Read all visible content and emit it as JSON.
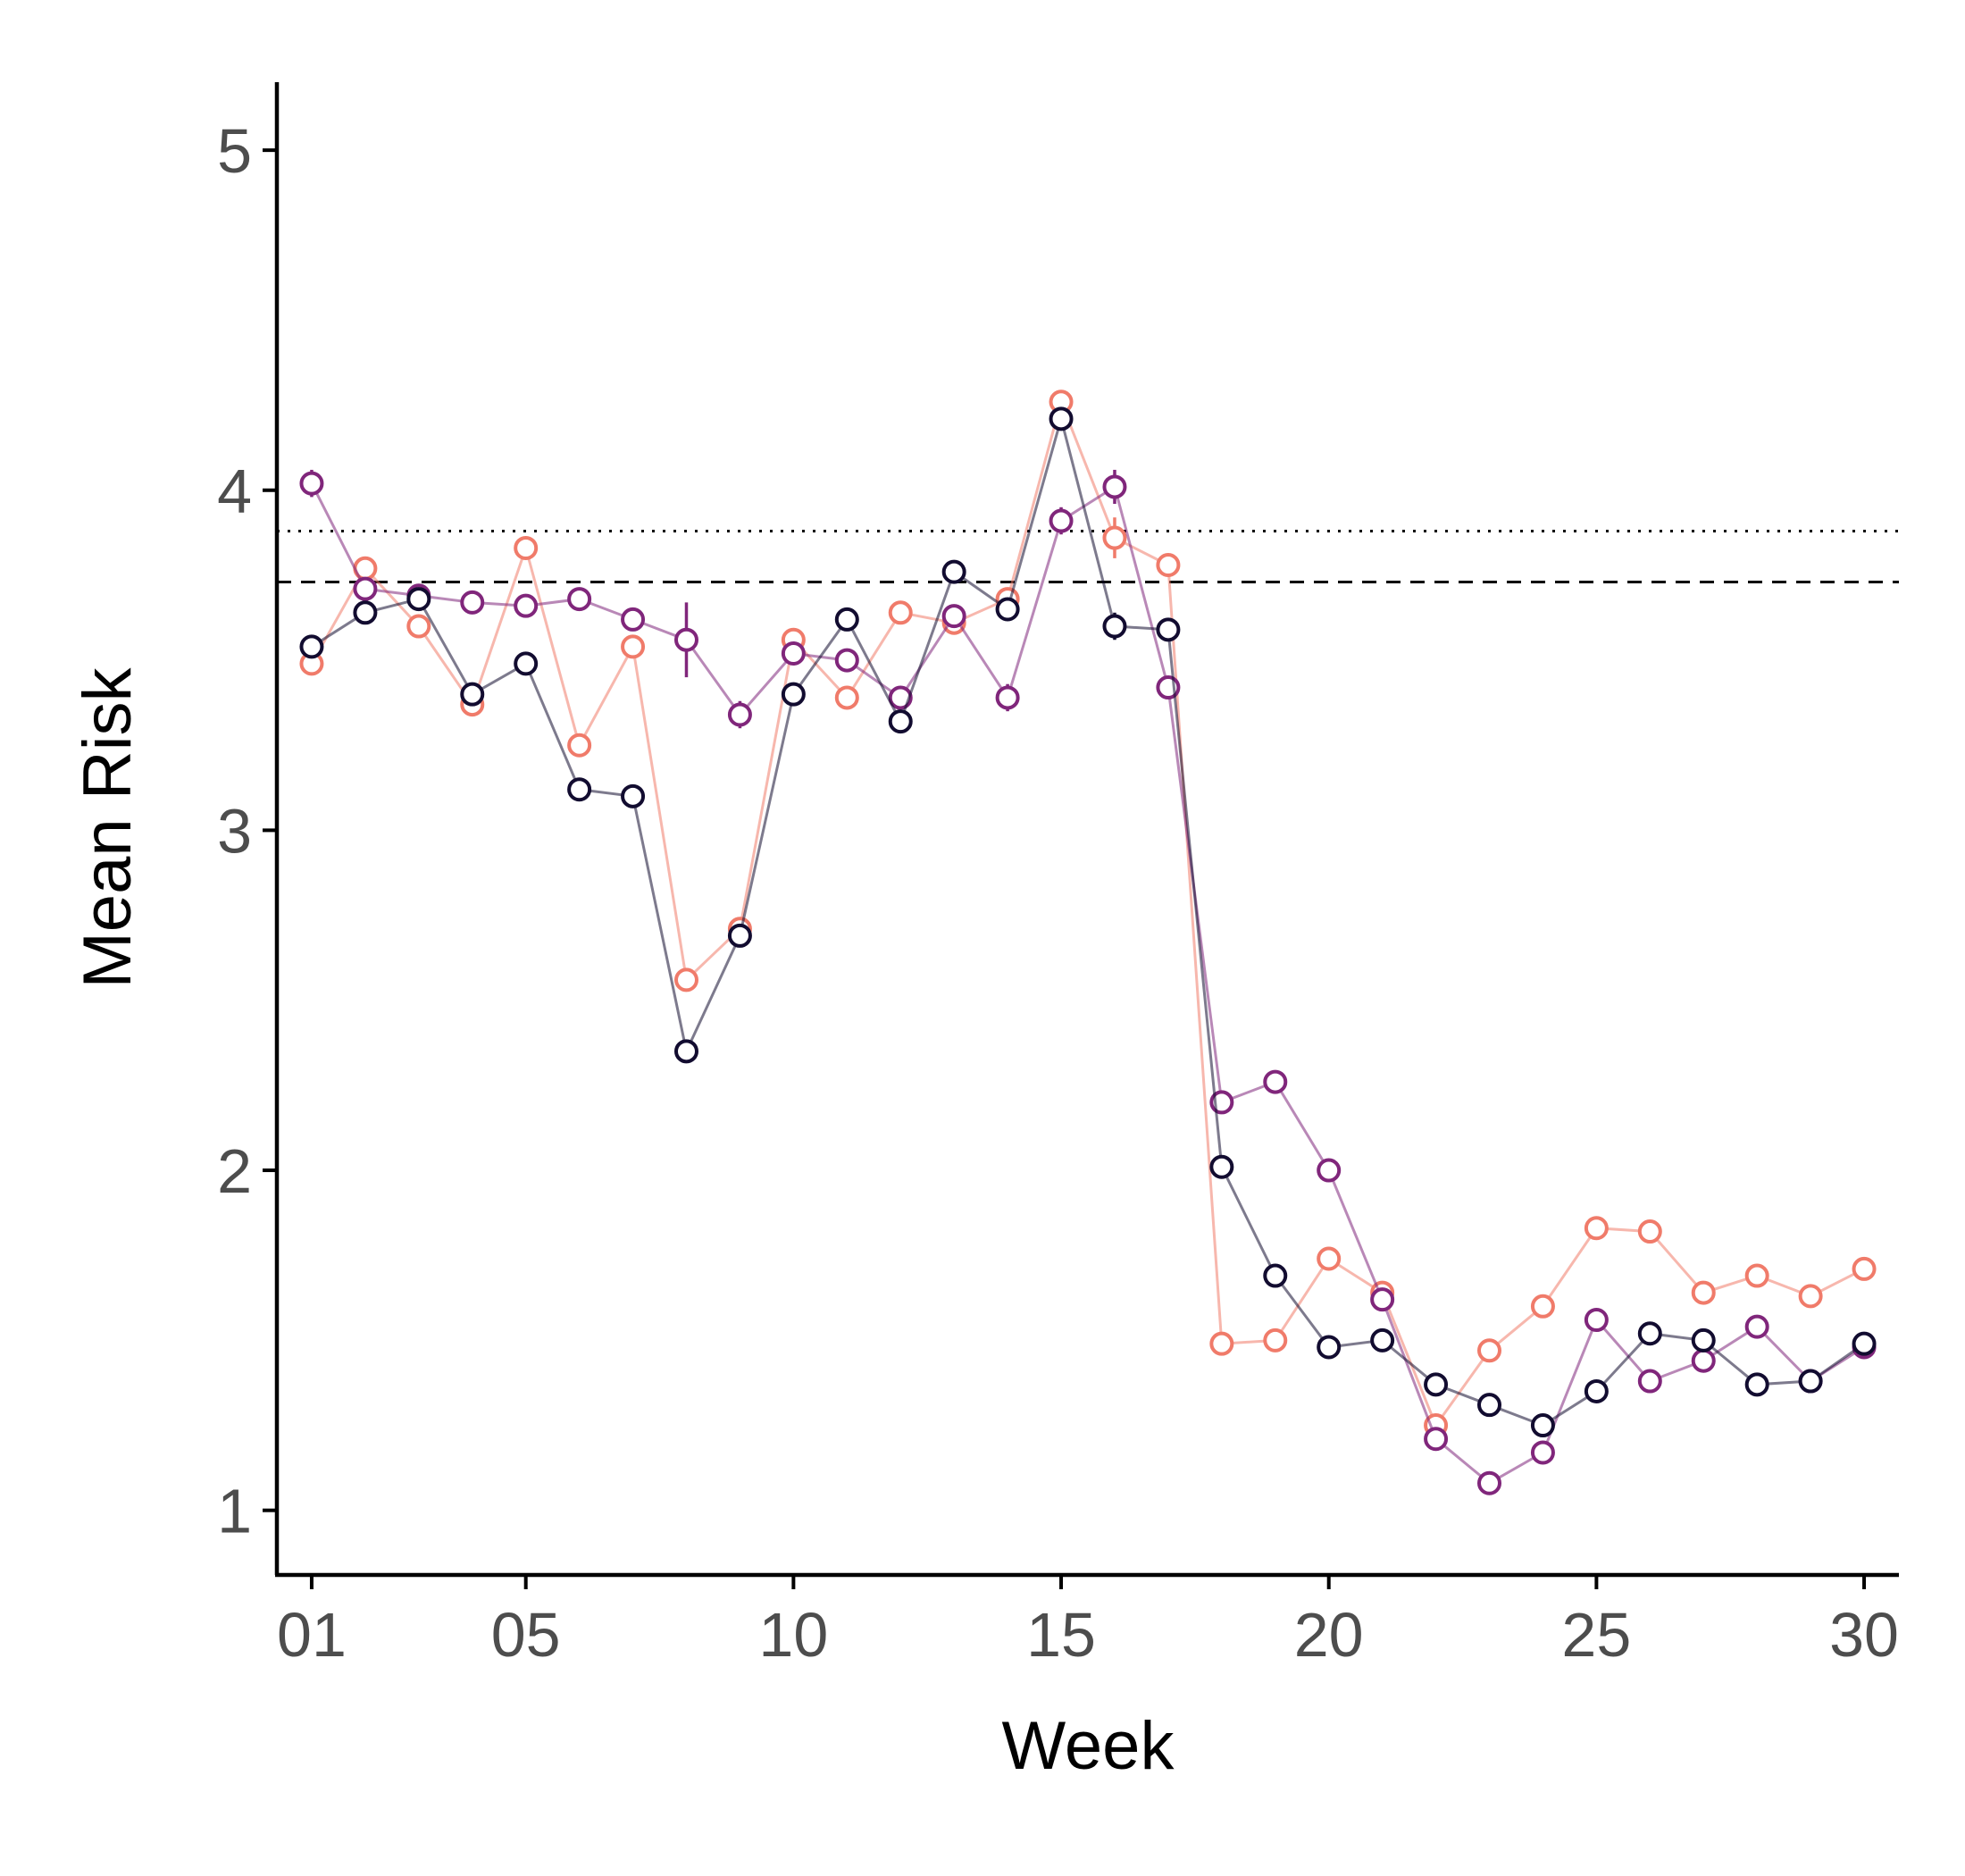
{
  "chart_data": {
    "type": "line",
    "title": "",
    "xlabel": "Week",
    "ylabel": "Mean Risk",
    "xlim": [
      0.35,
      30.65
    ],
    "ylim": [
      0.81,
      5.2
    ],
    "x_ticks": [
      1,
      5,
      10,
      15,
      20,
      25,
      30
    ],
    "x_tick_labels": [
      "01",
      "05",
      "10",
      "15",
      "20",
      "25",
      "30"
    ],
    "y_ticks": [
      1,
      2,
      3,
      4,
      5
    ],
    "y_tick_labels": [
      "1",
      "2",
      "3",
      "4",
      "5"
    ],
    "grid": false,
    "legend": "none",
    "reference_lines": [
      {
        "style": "dotted",
        "y": 3.88
      },
      {
        "style": "dashed",
        "y": 3.73
      }
    ],
    "x": [
      1,
      2,
      3,
      4,
      5,
      6,
      7,
      8,
      9,
      10,
      11,
      12,
      13,
      14,
      15,
      16,
      17,
      18,
      19,
      20,
      21,
      22,
      23,
      24,
      25,
      26,
      27,
      28,
      29,
      30
    ],
    "series": [
      {
        "color": "#f07b6a",
        "values": [
          3.49,
          3.77,
          3.6,
          3.37,
          3.83,
          3.25,
          3.54,
          2.56,
          2.71,
          3.56,
          3.39,
          3.64,
          3.61,
          3.68,
          4.26,
          3.86,
          3.78,
          1.49,
          1.5,
          1.74,
          1.64,
          1.25,
          1.47,
          1.6,
          1.83,
          1.82,
          1.64,
          1.69,
          1.63,
          1.71
        ],
        "errors": [
          0.02,
          0.02,
          0.02,
          0.02,
          0.02,
          0.02,
          0.02,
          0.02,
          0.02,
          0.02,
          0.02,
          0.02,
          0.02,
          0.02,
          0.03,
          0.06,
          0.02,
          0.02,
          0.02,
          0.02,
          0.02,
          0.02,
          0.02,
          0.02,
          0.02,
          0.02,
          0.02,
          0.02,
          0.02,
          0.02
        ]
      },
      {
        "color": "#80267b",
        "values": [
          4.02,
          3.71,
          3.69,
          3.67,
          3.66,
          3.68,
          3.62,
          3.56,
          3.34,
          3.52,
          3.5,
          3.39,
          3.63,
          3.39,
          3.91,
          4.01,
          3.42,
          2.2,
          2.26,
          2.0,
          1.62,
          1.21,
          1.08,
          1.17,
          1.56,
          1.38,
          1.44,
          1.54,
          1.38,
          1.48
        ],
        "errors": [
          0.04,
          0.02,
          0.02,
          0.02,
          0.03,
          0.02,
          0.03,
          0.11,
          0.04,
          0.03,
          0.03,
          0.03,
          0.03,
          0.04,
          0.04,
          0.05,
          0.02,
          0.02,
          0.02,
          0.02,
          0.02,
          0.02,
          0.02,
          0.02,
          0.02,
          0.02,
          0.02,
          0.02,
          0.02,
          0.02
        ]
      },
      {
        "color": "#120c30",
        "values": [
          3.54,
          3.64,
          3.68,
          3.4,
          3.49,
          3.12,
          3.1,
          2.35,
          2.69,
          3.4,
          3.62,
          3.32,
          3.76,
          3.65,
          4.21,
          3.6,
          3.59,
          2.01,
          1.69,
          1.48,
          1.5,
          1.37,
          1.31,
          1.25,
          1.35,
          1.52,
          1.5,
          1.37,
          1.38,
          1.49
        ],
        "errors": [
          0.02,
          0.02,
          0.02,
          0.02,
          0.02,
          0.02,
          0.02,
          0.02,
          0.02,
          0.02,
          0.02,
          0.02,
          0.03,
          0.02,
          0.02,
          0.04,
          0.02,
          0.02,
          0.02,
          0.02,
          0.02,
          0.02,
          0.02,
          0.02,
          0.02,
          0.02,
          0.02,
          0.02,
          0.02,
          0.02
        ]
      }
    ]
  }
}
